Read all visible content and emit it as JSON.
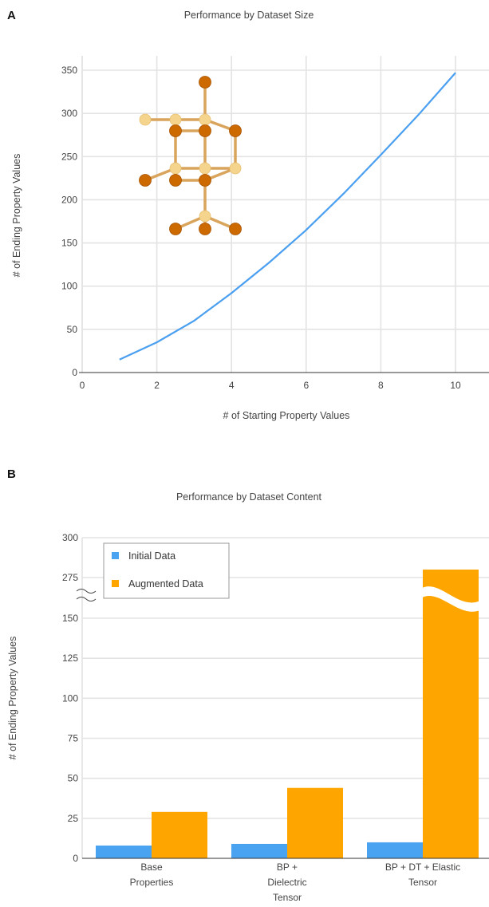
{
  "panel_a": {
    "letter": "A"
  },
  "panel_b": {
    "letter": "B"
  },
  "colors": {
    "line": "#4a9ff0",
    "initial": "#4aa3f0",
    "augmented": "#ffa500",
    "grid": "#e3e3e3",
    "atom_dark": "#cc6a00",
    "atom_light": "#f5d48e"
  },
  "chart_data": [
    {
      "type": "line",
      "title": "Performance by Dataset Size",
      "xlabel": "# of Starting Property Values",
      "ylabel": "# of Ending Property Values",
      "xlim": [
        0,
        10
      ],
      "ylim": [
        0,
        350
      ],
      "xticks": [
        "0",
        "2",
        "4",
        "6",
        "8",
        "10"
      ],
      "yticks": [
        "0",
        "50",
        "100",
        "150",
        "200",
        "250",
        "300",
        "350"
      ],
      "grid": true,
      "inset_image": "molecular-structure",
      "series": [
        {
          "x": [
            1,
            2,
            3,
            4,
            5,
            6,
            7,
            8,
            9,
            10
          ],
          "y": [
            15,
            35,
            60,
            92,
            127,
            165,
            207,
            252,
            298,
            347
          ]
        }
      ]
    },
    {
      "type": "bar",
      "title": "Performance by Dataset Content",
      "xlabel": "",
      "ylabel": "# of Ending Property Values",
      "ylim": [
        0,
        300
      ],
      "axis_break": [
        150,
        275
      ],
      "yticks": [
        "0",
        "25",
        "50",
        "75",
        "100",
        "125",
        "150",
        "275",
        "300"
      ],
      "categories": [
        "Base Properties",
        "BP + Dielectric Tensor",
        "BP + DT + Elastic Tensor"
      ],
      "category_lines": [
        [
          "Base",
          "Properties"
        ],
        [
          "BP +",
          "Dielectric",
          "Tensor"
        ],
        [
          "BP + DT + Elastic",
          "Tensor"
        ]
      ],
      "legend_position": "top-left",
      "grid": true,
      "series": [
        {
          "name": "Initial Data",
          "values": [
            8,
            9,
            10
          ]
        },
        {
          "name": "Augmented Data",
          "values": [
            29,
            44,
            280
          ]
        }
      ]
    }
  ]
}
